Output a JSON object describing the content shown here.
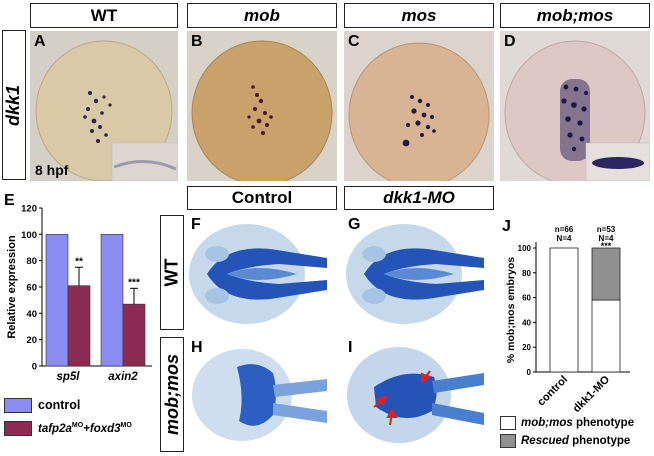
{
  "column_headers": [
    "WT",
    "mob",
    "mos",
    "mob;mos"
  ],
  "row_label_top": "dkk1",
  "stage_label": "8 hpf",
  "embryo_panels": [
    "A",
    "B",
    "C",
    "D"
  ],
  "mid_headers": [
    "Control",
    "dkk1-MO"
  ],
  "cartilage_row_labels": [
    "WT",
    "mob;mos"
  ],
  "cartilage_panels": [
    "F",
    "G",
    "H",
    "I"
  ],
  "panel_E": {
    "letter": "E",
    "chart_data": {
      "type": "bar",
      "ylabel": "Relative expression",
      "categories": [
        "sp5l",
        "axin2"
      ],
      "ylim": [
        0,
        120
      ],
      "yticks": [
        "0",
        "20",
        "40",
        "60",
        "80",
        "100",
        "120"
      ],
      "series": [
        {
          "name": "control",
          "color": "#8c8cf5",
          "values": [
            100,
            100
          ]
        },
        {
          "name": "tafp2a",
          "color": "#8b2a52",
          "values": [
            61,
            47
          ],
          "errors": [
            14,
            12
          ]
        }
      ],
      "significance": [
        "**",
        "***"
      ]
    },
    "legend": {
      "control": "control",
      "treated_base": "tafp2a",
      "treated_sup1": "MO",
      "treated_mid": "+foxd3",
      "treated_sup2": "MO"
    }
  },
  "panel_J": {
    "letter": "J",
    "chart_data": {
      "type": "bar",
      "ylabel": "% mob;mos embryos",
      "categories": [
        "control",
        "dkk1-MO"
      ],
      "ylim": [
        0,
        100
      ],
      "yticks": [
        "0",
        "20",
        "40",
        "60",
        "80",
        "100"
      ],
      "series": [
        {
          "name": "mob;mos phenotype",
          "color": "#ffffff",
          "values": [
            100,
            58
          ]
        },
        {
          "name": "Rescued phenotype",
          "color": "#909090",
          "values": [
            0,
            42
          ]
        }
      ],
      "counts": [
        {
          "n": "n=66",
          "N": "N=4"
        },
        {
          "n": "n=53",
          "N": "N=4"
        }
      ],
      "significance": [
        "",
        "***"
      ]
    },
    "legend": {
      "item1_italic": "mob;mos",
      "item1_rest": " phenotype",
      "item2_italic": "Rescued",
      "item2_rest": " phenotype"
    }
  }
}
